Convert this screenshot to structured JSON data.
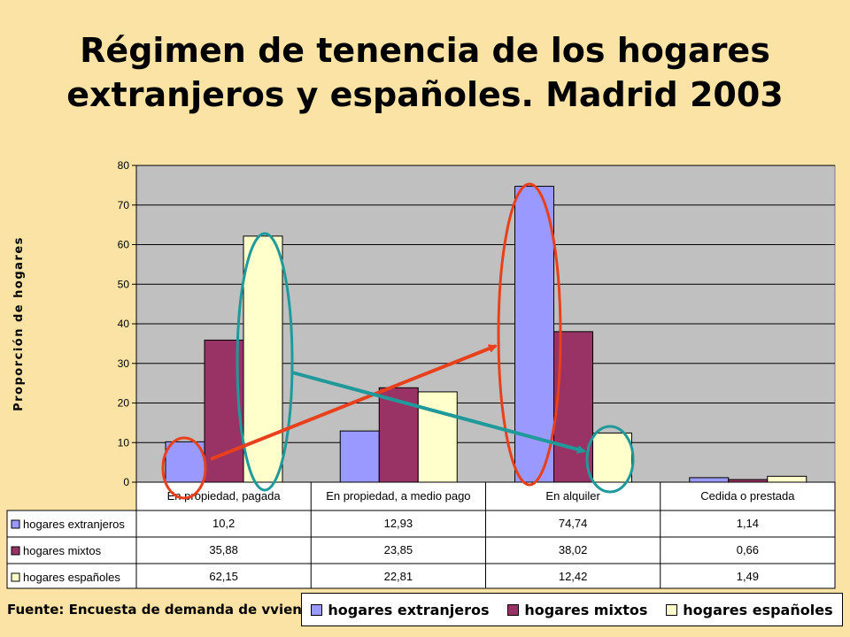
{
  "page": {
    "title_line1": "Régimen de tenencia de los hogares",
    "title_line2": "extranjeros y españoles. Madrid 2003",
    "source": "Fuente: Encuesta de demanda de vvienda, Comu"
  },
  "chart_data": {
    "type": "bar",
    "title": "Régimen de tenencia de los hogares extranjeros y españoles. Madrid 2003",
    "ylabel": "Proporción de hogares",
    "xlabel": "",
    "ylim": [
      0,
      80
    ],
    "yticks": [
      0,
      10,
      20,
      30,
      40,
      50,
      60,
      70,
      80
    ],
    "categories": [
      "En propiedad, pagada",
      "En propiedad, a medio pago",
      "En alquiler",
      "Cedida o prestada"
    ],
    "series": [
      {
        "name": "hogares extranjeros",
        "color": "#9999FF",
        "values": [
          10.2,
          12.93,
          74.74,
          1.14
        ],
        "labels": [
          "10,2",
          "12,93",
          "74,74",
          "1,14"
        ]
      },
      {
        "name": "hogares mixtos",
        "color": "#993366",
        "values": [
          35.88,
          23.85,
          38.02,
          0.66
        ],
        "labels": [
          "35,88",
          "23,85",
          "38,02",
          "0,66"
        ]
      },
      {
        "name": "hogares españoles",
        "color": "#FFFFCC",
        "values": [
          62.15,
          22.81,
          12.42,
          1.49
        ],
        "labels": [
          "62,15",
          "22,81",
          "12,42",
          "1,49"
        ]
      }
    ],
    "grid": true,
    "plot_background": "#C0C0C0",
    "legend": "bottom-right",
    "annotation_colors": {
      "red": "#E8401C",
      "teal": "#20999A"
    }
  }
}
